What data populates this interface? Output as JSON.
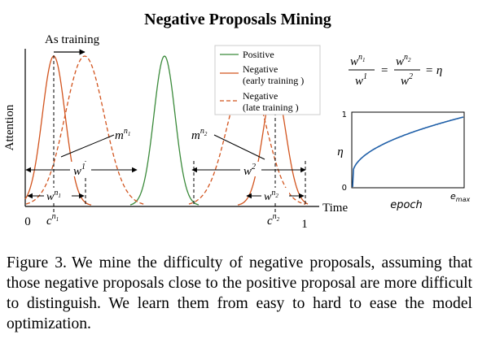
{
  "figure": {
    "title": "Negative Proposals Mining",
    "as_training": "As training",
    "axis_y": "Attention",
    "axis_x": "Time",
    "tick_0": "0",
    "tick_1": "1",
    "c_n1": "c^{n_1}",
    "c_n2": "c^{n_2}",
    "m_n1": "m^{n_1}",
    "m_n2": "m^{n_2}",
    "w1": "w^1",
    "w2": "w^2",
    "w_n1": "w^{n_1}",
    "w_n2": "w^{n_2}",
    "legend": {
      "positive": "Positive",
      "neg_early_1": "Negative",
      "neg_early_2": "(early training )",
      "neg_late_1": "Negative",
      "neg_late_2": "(late training )"
    },
    "colors": {
      "positive": "#3a8a3a",
      "negative": "#d2541e",
      "text": "#000000"
    }
  },
  "inset": {
    "formula_lhs_num": "w^{n_1}",
    "formula_lhs_den": "w^1",
    "formula_rhs_num": "w^{n_2}",
    "formula_rhs_den": "w^2",
    "formula_eq": "= η",
    "y_label": "η",
    "x_label": "epoch",
    "x_end": "e_max",
    "y_top": "1",
    "origin": "0"
  },
  "caption": {
    "label": "Figure 3.",
    "text": "We mine the difficulty of negative proposals, assuming that those negative proposals close to the positive proposal are more difficult to distinguish. We learn them from easy to hard to ease the model optimization."
  }
}
